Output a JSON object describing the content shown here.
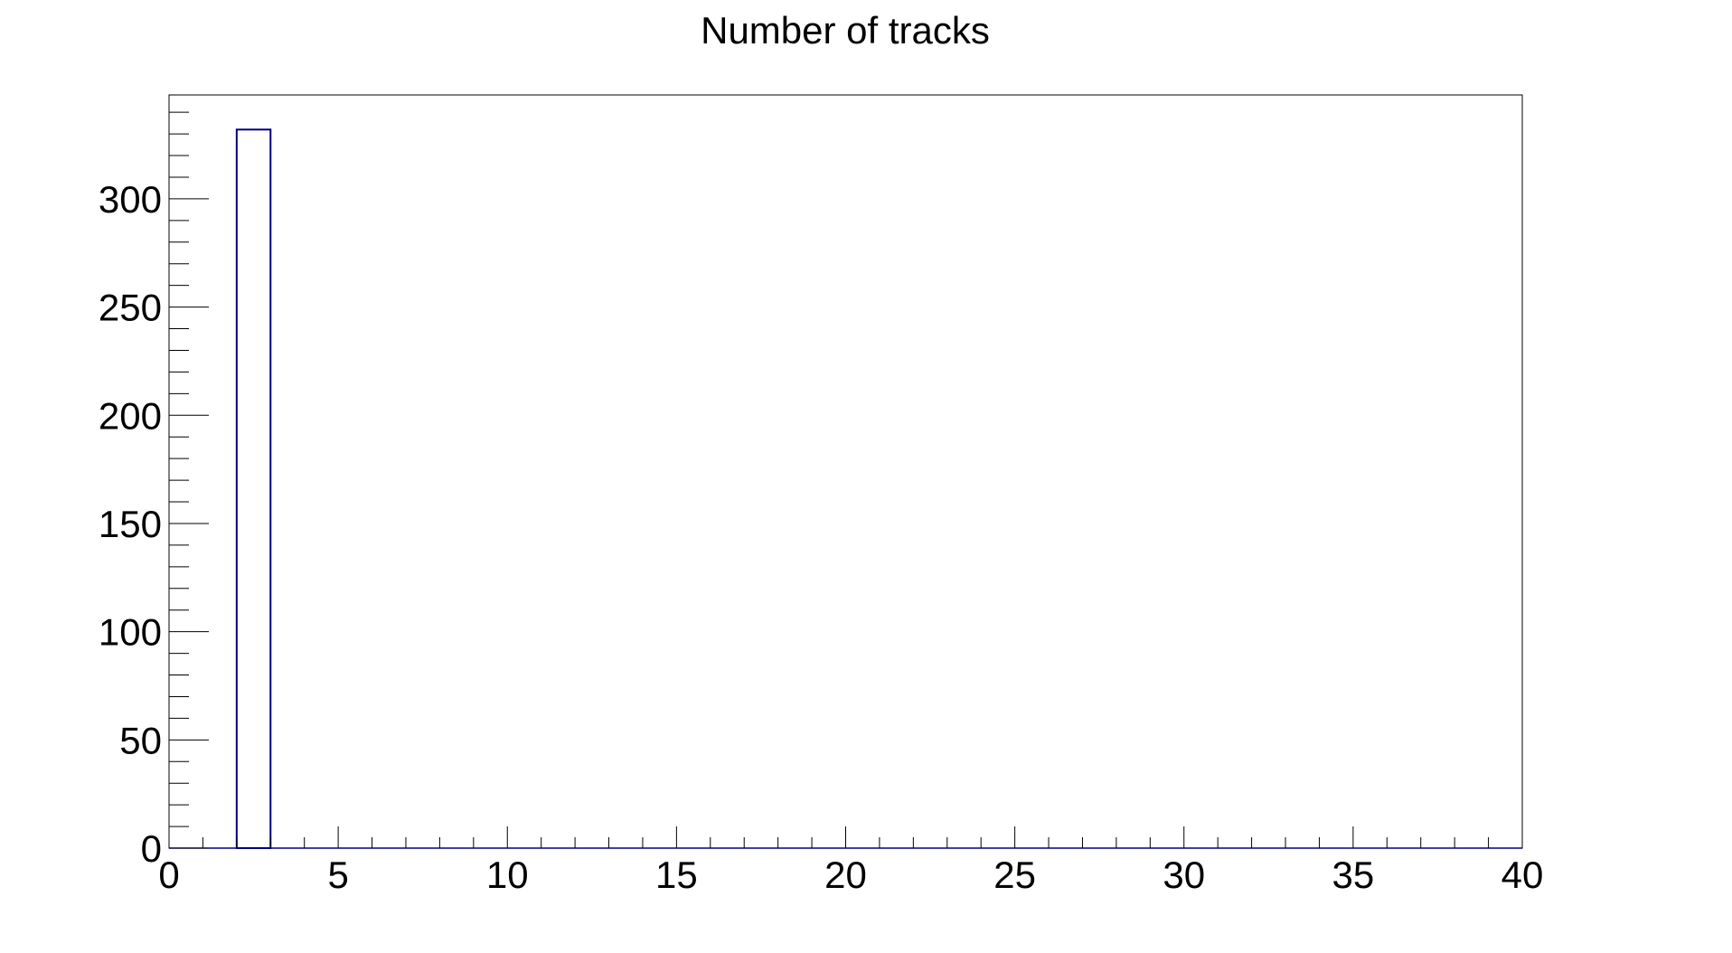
{
  "chart_data": {
    "type": "bar",
    "title": "Number of tracks",
    "xlabel": "",
    "ylabel": "",
    "xlim": [
      0,
      40
    ],
    "ylim": [
      0,
      348
    ],
    "bin_width": 1,
    "bins": [
      {
        "x_low": 2,
        "x_high": 3,
        "value": 332
      }
    ],
    "x_ticks": [
      0,
      5,
      10,
      15,
      20,
      25,
      30,
      35,
      40
    ],
    "x_tick_labels": [
      "0",
      "5",
      "10",
      "15",
      "20",
      "25",
      "30",
      "35",
      "40"
    ],
    "y_ticks": [
      0,
      50,
      100,
      150,
      200,
      250,
      300
    ],
    "y_tick_labels": [
      "0",
      "50",
      "100",
      "150",
      "200",
      "250",
      "300"
    ],
    "grid": false,
    "legend": "none",
    "colors": {
      "bar_outline": "#000080",
      "axes": "#000000",
      "background": "#ffffff"
    }
  }
}
